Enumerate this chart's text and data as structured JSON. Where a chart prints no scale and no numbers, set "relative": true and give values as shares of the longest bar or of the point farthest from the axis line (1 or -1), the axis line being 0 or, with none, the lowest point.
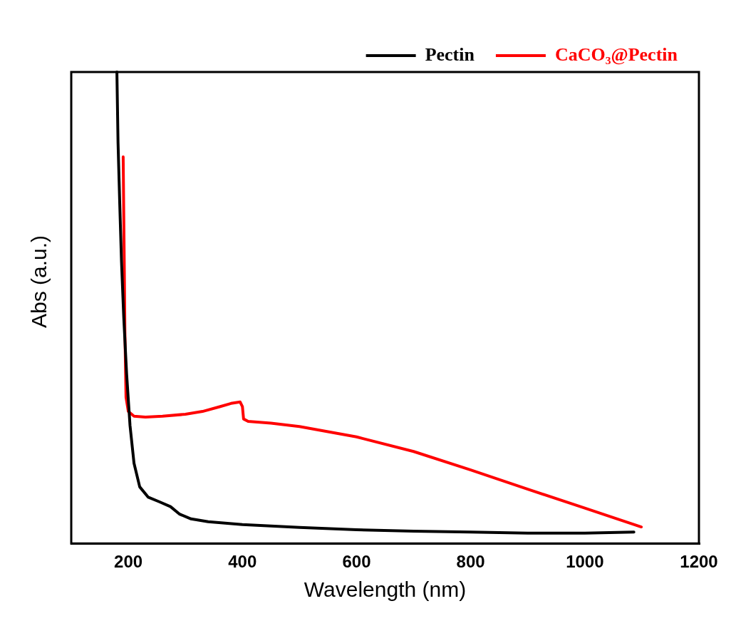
{
  "chart_data": {
    "type": "line",
    "xlabel": "Wavelength (nm)",
    "ylabel": "Abs (a.u.)",
    "relative": true,
    "xlim": [
      100,
      1200
    ],
    "xticks": [
      200,
      400,
      600,
      800,
      1000,
      1200
    ],
    "legend": "top right",
    "grid": false,
    "marker": "none",
    "line_style": "solid",
    "series": [
      {
        "name": "Pectin",
        "color": "#000000",
        "x": [
          180,
          182,
          185,
          188,
          192,
          197,
          203,
          210,
          220,
          235,
          255,
          274,
          290,
          310,
          340,
          400,
          500,
          600,
          700,
          800,
          900,
          1000,
          1086
        ],
        "values": [
          1.0,
          0.85,
          0.72,
          0.6,
          0.48,
          0.36,
          0.25,
          0.17,
          0.12,
          0.098,
          0.088,
          0.078,
          0.062,
          0.052,
          0.046,
          0.04,
          0.034,
          0.029,
          0.026,
          0.024,
          0.022,
          0.022,
          0.024
        ]
      },
      {
        "name": "CaCO₃@Pectin",
        "color": "#ff0000",
        "x": [
          191,
          192,
          193,
          194,
          196,
          200,
          210,
          230,
          260,
          300,
          330,
          360,
          380,
          396,
          400,
          402,
          410,
          450,
          500,
          600,
          700,
          800,
          900,
          1000,
          1099
        ],
        "values": [
          0.82,
          0.7,
          0.58,
          0.45,
          0.31,
          0.28,
          0.27,
          0.268,
          0.27,
          0.274,
          0.28,
          0.29,
          0.297,
          0.3,
          0.29,
          0.264,
          0.259,
          0.255,
          0.248,
          0.226,
          0.195,
          0.156,
          0.115,
          0.075,
          0.035
        ]
      }
    ]
  }
}
